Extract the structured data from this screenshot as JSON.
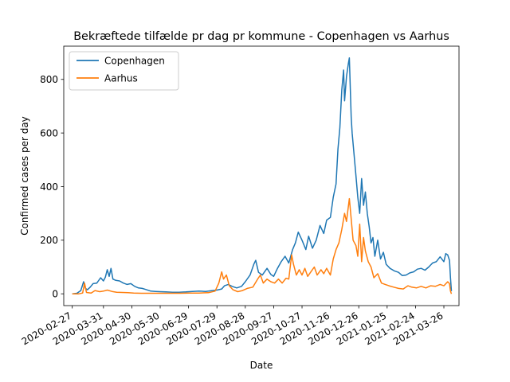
{
  "chart_data": {
    "type": "line",
    "title": "Bekræftede tilfælde pr dag pr kommune - Copenhagen vs Aarhus",
    "xlabel": "Date",
    "ylabel": "Confirmed cases per day",
    "x_ticks": [
      "2020-02-27",
      "2020-03-31",
      "2020-04-30",
      "2020-05-30",
      "2020-06-29",
      "2020-07-29",
      "2020-08-28",
      "2020-09-27",
      "2020-10-27",
      "2020-11-26",
      "2020-12-26",
      "2021-01-25",
      "2021-02-24",
      "2021-03-26"
    ],
    "y_ticks": [
      0,
      200,
      400,
      600,
      800
    ],
    "xlim": [
      "2020-02-18",
      "2021-04-11"
    ],
    "ylim": [
      -44,
      924
    ],
    "legend": "upper-left",
    "grid": false,
    "series": [
      {
        "name": "Copenhagen",
        "color": "#1f77b4",
        "points": [
          [
            "2020-02-27",
            0
          ],
          [
            "2020-03-03",
            2
          ],
          [
            "2020-03-07",
            12
          ],
          [
            "2020-03-10",
            45
          ],
          [
            "2020-03-12",
            20
          ],
          [
            "2020-03-14",
            15
          ],
          [
            "2020-03-17",
            25
          ],
          [
            "2020-03-20",
            38
          ],
          [
            "2020-03-24",
            40
          ],
          [
            "2020-03-28",
            60
          ],
          [
            "2020-03-31",
            48
          ],
          [
            "2020-04-02",
            62
          ],
          [
            "2020-04-04",
            90
          ],
          [
            "2020-04-06",
            65
          ],
          [
            "2020-04-08",
            95
          ],
          [
            "2020-04-10",
            55
          ],
          [
            "2020-04-13",
            50
          ],
          [
            "2020-04-17",
            48
          ],
          [
            "2020-04-21",
            40
          ],
          [
            "2020-04-25",
            35
          ],
          [
            "2020-04-29",
            38
          ],
          [
            "2020-05-03",
            28
          ],
          [
            "2020-05-07",
            22
          ],
          [
            "2020-05-11",
            20
          ],
          [
            "2020-05-15",
            16
          ],
          [
            "2020-05-20",
            10
          ],
          [
            "2020-05-25",
            9
          ],
          [
            "2020-05-30",
            8
          ],
          [
            "2020-06-05",
            7
          ],
          [
            "2020-06-12",
            6
          ],
          [
            "2020-06-19",
            6
          ],
          [
            "2020-06-26",
            7
          ],
          [
            "2020-07-03",
            9
          ],
          [
            "2020-07-10",
            10
          ],
          [
            "2020-07-17",
            9
          ],
          [
            "2020-07-24",
            12
          ],
          [
            "2020-07-29",
            14
          ],
          [
            "2020-08-03",
            18
          ],
          [
            "2020-08-06",
            30
          ],
          [
            "2020-08-10",
            35
          ],
          [
            "2020-08-14",
            28
          ],
          [
            "2020-08-19",
            22
          ],
          [
            "2020-08-24",
            28
          ],
          [
            "2020-08-28",
            45
          ],
          [
            "2020-09-02",
            70
          ],
          [
            "2020-09-06",
            110
          ],
          [
            "2020-09-08",
            125
          ],
          [
            "2020-09-11",
            80
          ],
          [
            "2020-09-15",
            70
          ],
          [
            "2020-09-20",
            95
          ],
          [
            "2020-09-24",
            72
          ],
          [
            "2020-09-27",
            65
          ],
          [
            "2020-10-01",
            95
          ],
          [
            "2020-10-05",
            120
          ],
          [
            "2020-10-09",
            140
          ],
          [
            "2020-10-13",
            115
          ],
          [
            "2020-10-17",
            165
          ],
          [
            "2020-10-20",
            190
          ],
          [
            "2020-10-23",
            230
          ],
          [
            "2020-10-27",
            200
          ],
          [
            "2020-10-31",
            165
          ],
          [
            "2020-11-03",
            215
          ],
          [
            "2020-11-07",
            170
          ],
          [
            "2020-11-11",
            200
          ],
          [
            "2020-11-15",
            255
          ],
          [
            "2020-11-19",
            225
          ],
          [
            "2020-11-22",
            275
          ],
          [
            "2020-11-26",
            285
          ],
          [
            "2020-11-29",
            360
          ],
          [
            "2020-12-02",
            410
          ],
          [
            "2020-12-04",
            540
          ],
          [
            "2020-12-06",
            620
          ],
          [
            "2020-12-08",
            760
          ],
          [
            "2020-12-10",
            835
          ],
          [
            "2020-12-11",
            720
          ],
          [
            "2020-12-13",
            810
          ],
          [
            "2020-12-15",
            860
          ],
          [
            "2020-12-16",
            880
          ],
          [
            "2020-12-18",
            660
          ],
          [
            "2020-12-19",
            600
          ],
          [
            "2020-12-21",
            520
          ],
          [
            "2020-12-23",
            440
          ],
          [
            "2020-12-25",
            360
          ],
          [
            "2020-12-27",
            300
          ],
          [
            "2020-12-29",
            430
          ],
          [
            "2020-12-31",
            330
          ],
          [
            "2021-01-02",
            380
          ],
          [
            "2021-01-04",
            300
          ],
          [
            "2021-01-06",
            250
          ],
          [
            "2021-01-08",
            190
          ],
          [
            "2021-01-10",
            210
          ],
          [
            "2021-01-12",
            140
          ],
          [
            "2021-01-15",
            200
          ],
          [
            "2021-01-18",
            130
          ],
          [
            "2021-01-21",
            155
          ],
          [
            "2021-01-24",
            110
          ],
          [
            "2021-01-28",
            95
          ],
          [
            "2021-02-02",
            85
          ],
          [
            "2021-02-06",
            80
          ],
          [
            "2021-02-10",
            68
          ],
          [
            "2021-02-14",
            70
          ],
          [
            "2021-02-18",
            78
          ],
          [
            "2021-02-22",
            82
          ],
          [
            "2021-02-26",
            92
          ],
          [
            "2021-03-02",
            95
          ],
          [
            "2021-03-06",
            88
          ],
          [
            "2021-03-10",
            100
          ],
          [
            "2021-03-14",
            115
          ],
          [
            "2021-03-18",
            120
          ],
          [
            "2021-03-22",
            138
          ],
          [
            "2021-03-26",
            120
          ],
          [
            "2021-03-28",
            150
          ],
          [
            "2021-03-30",
            145
          ],
          [
            "2021-04-01",
            125
          ],
          [
            "2021-04-02",
            60
          ],
          [
            "2021-04-03",
            10
          ]
        ]
      },
      {
        "name": "Aarhus",
        "color": "#ff7f0e",
        "points": [
          [
            "2020-02-27",
            0
          ],
          [
            "2020-03-05",
            0
          ],
          [
            "2020-03-09",
            3
          ],
          [
            "2020-03-11",
            40
          ],
          [
            "2020-03-13",
            5
          ],
          [
            "2020-03-18",
            3
          ],
          [
            "2020-03-22",
            12
          ],
          [
            "2020-03-27",
            8
          ],
          [
            "2020-03-31",
            10
          ],
          [
            "2020-04-04",
            14
          ],
          [
            "2020-04-09",
            9
          ],
          [
            "2020-04-14",
            6
          ],
          [
            "2020-04-20",
            5
          ],
          [
            "2020-04-26",
            4
          ],
          [
            "2020-05-02",
            3
          ],
          [
            "2020-05-10",
            2
          ],
          [
            "2020-05-20",
            2
          ],
          [
            "2020-05-30",
            2
          ],
          [
            "2020-06-10",
            2
          ],
          [
            "2020-06-20",
            2
          ],
          [
            "2020-06-30",
            3
          ],
          [
            "2020-07-10",
            3
          ],
          [
            "2020-07-20",
            4
          ],
          [
            "2020-07-27",
            10
          ],
          [
            "2020-07-31",
            40
          ],
          [
            "2020-08-03",
            82
          ],
          [
            "2020-08-05",
            55
          ],
          [
            "2020-08-08",
            70
          ],
          [
            "2020-08-11",
            30
          ],
          [
            "2020-08-15",
            15
          ],
          [
            "2020-08-20",
            8
          ],
          [
            "2020-08-25",
            12
          ],
          [
            "2020-08-30",
            20
          ],
          [
            "2020-09-05",
            25
          ],
          [
            "2020-09-10",
            55
          ],
          [
            "2020-09-13",
            70
          ],
          [
            "2020-09-16",
            40
          ],
          [
            "2020-09-20",
            55
          ],
          [
            "2020-09-24",
            45
          ],
          [
            "2020-09-28",
            40
          ],
          [
            "2020-10-02",
            55
          ],
          [
            "2020-10-06",
            40
          ],
          [
            "2020-10-10",
            58
          ],
          [
            "2020-10-13",
            55
          ],
          [
            "2020-10-16",
            145
          ],
          [
            "2020-10-18",
            110
          ],
          [
            "2020-10-21",
            70
          ],
          [
            "2020-10-24",
            90
          ],
          [
            "2020-10-27",
            70
          ],
          [
            "2020-10-30",
            95
          ],
          [
            "2020-11-02",
            65
          ],
          [
            "2020-11-05",
            80
          ],
          [
            "2020-11-09",
            100
          ],
          [
            "2020-11-12",
            70
          ],
          [
            "2020-11-16",
            90
          ],
          [
            "2020-11-19",
            75
          ],
          [
            "2020-11-22",
            95
          ],
          [
            "2020-11-26",
            70
          ],
          [
            "2020-11-29",
            130
          ],
          [
            "2020-12-02",
            165
          ],
          [
            "2020-12-05",
            190
          ],
          [
            "2020-12-08",
            240
          ],
          [
            "2020-12-11",
            300
          ],
          [
            "2020-12-13",
            270
          ],
          [
            "2020-12-16",
            355
          ],
          [
            "2020-12-18",
            280
          ],
          [
            "2020-12-20",
            200
          ],
          [
            "2020-12-23",
            180
          ],
          [
            "2020-12-25",
            140
          ],
          [
            "2020-12-27",
            260
          ],
          [
            "2020-12-29",
            120
          ],
          [
            "2020-12-31",
            210
          ],
          [
            "2021-01-02",
            160
          ],
          [
            "2021-01-05",
            120
          ],
          [
            "2021-01-08",
            100
          ],
          [
            "2021-01-11",
            60
          ],
          [
            "2021-01-15",
            75
          ],
          [
            "2021-01-19",
            40
          ],
          [
            "2021-01-23",
            35
          ],
          [
            "2021-01-27",
            30
          ],
          [
            "2021-02-01",
            25
          ],
          [
            "2021-02-06",
            20
          ],
          [
            "2021-02-11",
            18
          ],
          [
            "2021-02-16",
            30
          ],
          [
            "2021-02-20",
            25
          ],
          [
            "2021-02-25",
            22
          ],
          [
            "2021-03-02",
            28
          ],
          [
            "2021-03-07",
            22
          ],
          [
            "2021-03-12",
            30
          ],
          [
            "2021-03-17",
            28
          ],
          [
            "2021-03-22",
            35
          ],
          [
            "2021-03-26",
            30
          ],
          [
            "2021-03-30",
            45
          ],
          [
            "2021-04-01",
            38
          ],
          [
            "2021-04-02",
            10
          ],
          [
            "2021-04-03",
            0
          ]
        ]
      }
    ]
  }
}
